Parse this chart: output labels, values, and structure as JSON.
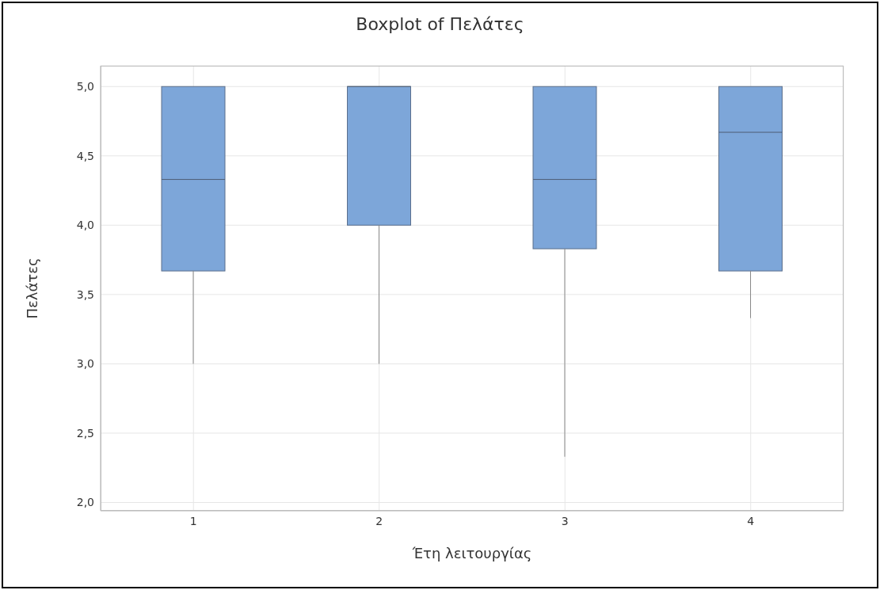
{
  "chart_data": {
    "type": "box",
    "title": "Boxplot of Πελάτες",
    "xlabel": "Έτη λειτουργίας",
    "ylabel": "Πελάτες",
    "categories": [
      "1",
      "2",
      "3",
      "4"
    ],
    "series": [
      {
        "color": "#7da6d9",
        "boxes": [
          {
            "low": 3.0,
            "q1": 3.67,
            "median": 4.33,
            "q3": 5.0,
            "high": 5.0
          },
          {
            "low": 3.0,
            "q1": 4.0,
            "median": 5.0,
            "q3": 5.0,
            "high": 5.0
          },
          {
            "low": 2.33,
            "q1": 3.83,
            "median": 4.33,
            "q3": 5.0,
            "high": 5.0
          },
          {
            "low": 3.33,
            "q1": 3.67,
            "median": 4.67,
            "q3": 5.0,
            "high": 5.0
          }
        ]
      }
    ],
    "ylim": [
      1.94,
      5.15
    ],
    "yticks": [
      {
        "value": 2,
        "label": "2,0"
      },
      {
        "value": 2.5,
        "label": "2,5"
      },
      {
        "value": 3,
        "label": "3,0"
      },
      {
        "value": 3.5,
        "label": "3,5"
      },
      {
        "value": 4,
        "label": "4,0"
      },
      {
        "value": 4.5,
        "label": "4,5"
      },
      {
        "value": 5,
        "label": "5,0"
      }
    ],
    "grid": true
  }
}
